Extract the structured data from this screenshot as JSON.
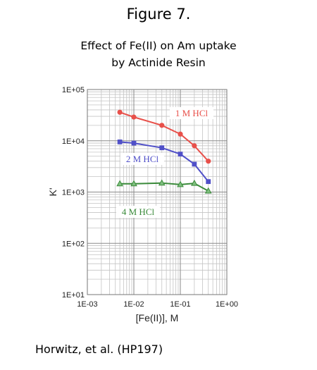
{
  "header": {
    "figure_label": "Figure 7.",
    "subtitle_line1": "Effect of Fe(II) on Am uptake",
    "subtitle_line2": "by Actinide Resin"
  },
  "credit": "Horwitz, et al. (HP197)",
  "chart_data": {
    "type": "line",
    "xlabel": "[Fe(II)], M",
    "ylabel": "K'",
    "xscale": "log",
    "yscale": "log",
    "xlim": [
      0.001,
      1
    ],
    "ylim": [
      10,
      100000
    ],
    "xticks": [
      "1E-03",
      "1E-02",
      "1E-01",
      "1E+00"
    ],
    "yticks": [
      "1E+01",
      "1E+02",
      "1E+03",
      "1E+04",
      "1E+05"
    ],
    "grid": true,
    "series": [
      {
        "name": "1 M HCl",
        "color": "#e8504a",
        "marker": "circle",
        "x": [
          0.005,
          0.01,
          0.04,
          0.1,
          0.2,
          0.4
        ],
        "y": [
          36000,
          29000,
          20000,
          13500,
          8000,
          4000
        ]
      },
      {
        "name": "2 M HCl",
        "color": "#5050c8",
        "marker": "square",
        "x": [
          0.005,
          0.01,
          0.04,
          0.1,
          0.2,
          0.4
        ],
        "y": [
          9500,
          9000,
          7300,
          5500,
          3500,
          1600
        ]
      },
      {
        "name": "4 M HCl",
        "color": "#3a8a3a",
        "marker": "triangle",
        "x": [
          0.005,
          0.01,
          0.04,
          0.1,
          0.2,
          0.4
        ],
        "y": [
          1450,
          1450,
          1500,
          1400,
          1480,
          1050
        ]
      }
    ]
  }
}
